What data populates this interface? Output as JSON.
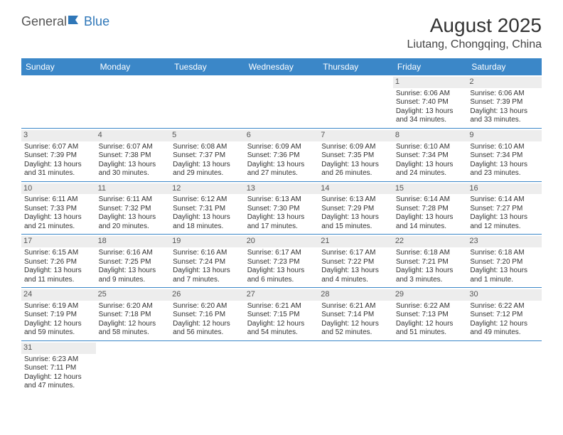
{
  "logo": {
    "part1": "General",
    "part2": "Blue"
  },
  "title": "August 2025",
  "location": "Liutang, Chongqing, China",
  "colors": {
    "header_bg": "#3b87c8",
    "header_text": "#ffffff",
    "daynum_bg": "#ededed",
    "border": "#3b87c8"
  },
  "weekdays": [
    "Sunday",
    "Monday",
    "Tuesday",
    "Wednesday",
    "Thursday",
    "Friday",
    "Saturday"
  ],
  "weeks": [
    [
      null,
      null,
      null,
      null,
      null,
      {
        "n": "1",
        "sr": "Sunrise: 6:06 AM",
        "ss": "Sunset: 7:40 PM",
        "dl": "Daylight: 13 hours and 34 minutes."
      },
      {
        "n": "2",
        "sr": "Sunrise: 6:06 AM",
        "ss": "Sunset: 7:39 PM",
        "dl": "Daylight: 13 hours and 33 minutes."
      }
    ],
    [
      {
        "n": "3",
        "sr": "Sunrise: 6:07 AM",
        "ss": "Sunset: 7:39 PM",
        "dl": "Daylight: 13 hours and 31 minutes."
      },
      {
        "n": "4",
        "sr": "Sunrise: 6:07 AM",
        "ss": "Sunset: 7:38 PM",
        "dl": "Daylight: 13 hours and 30 minutes."
      },
      {
        "n": "5",
        "sr": "Sunrise: 6:08 AM",
        "ss": "Sunset: 7:37 PM",
        "dl": "Daylight: 13 hours and 29 minutes."
      },
      {
        "n": "6",
        "sr": "Sunrise: 6:09 AM",
        "ss": "Sunset: 7:36 PM",
        "dl": "Daylight: 13 hours and 27 minutes."
      },
      {
        "n": "7",
        "sr": "Sunrise: 6:09 AM",
        "ss": "Sunset: 7:35 PM",
        "dl": "Daylight: 13 hours and 26 minutes."
      },
      {
        "n": "8",
        "sr": "Sunrise: 6:10 AM",
        "ss": "Sunset: 7:34 PM",
        "dl": "Daylight: 13 hours and 24 minutes."
      },
      {
        "n": "9",
        "sr": "Sunrise: 6:10 AM",
        "ss": "Sunset: 7:34 PM",
        "dl": "Daylight: 13 hours and 23 minutes."
      }
    ],
    [
      {
        "n": "10",
        "sr": "Sunrise: 6:11 AM",
        "ss": "Sunset: 7:33 PM",
        "dl": "Daylight: 13 hours and 21 minutes."
      },
      {
        "n": "11",
        "sr": "Sunrise: 6:11 AM",
        "ss": "Sunset: 7:32 PM",
        "dl": "Daylight: 13 hours and 20 minutes."
      },
      {
        "n": "12",
        "sr": "Sunrise: 6:12 AM",
        "ss": "Sunset: 7:31 PM",
        "dl": "Daylight: 13 hours and 18 minutes."
      },
      {
        "n": "13",
        "sr": "Sunrise: 6:13 AM",
        "ss": "Sunset: 7:30 PM",
        "dl": "Daylight: 13 hours and 17 minutes."
      },
      {
        "n": "14",
        "sr": "Sunrise: 6:13 AM",
        "ss": "Sunset: 7:29 PM",
        "dl": "Daylight: 13 hours and 15 minutes."
      },
      {
        "n": "15",
        "sr": "Sunrise: 6:14 AM",
        "ss": "Sunset: 7:28 PM",
        "dl": "Daylight: 13 hours and 14 minutes."
      },
      {
        "n": "16",
        "sr": "Sunrise: 6:14 AM",
        "ss": "Sunset: 7:27 PM",
        "dl": "Daylight: 13 hours and 12 minutes."
      }
    ],
    [
      {
        "n": "17",
        "sr": "Sunrise: 6:15 AM",
        "ss": "Sunset: 7:26 PM",
        "dl": "Daylight: 13 hours and 11 minutes."
      },
      {
        "n": "18",
        "sr": "Sunrise: 6:16 AM",
        "ss": "Sunset: 7:25 PM",
        "dl": "Daylight: 13 hours and 9 minutes."
      },
      {
        "n": "19",
        "sr": "Sunrise: 6:16 AM",
        "ss": "Sunset: 7:24 PM",
        "dl": "Daylight: 13 hours and 7 minutes."
      },
      {
        "n": "20",
        "sr": "Sunrise: 6:17 AM",
        "ss": "Sunset: 7:23 PM",
        "dl": "Daylight: 13 hours and 6 minutes."
      },
      {
        "n": "21",
        "sr": "Sunrise: 6:17 AM",
        "ss": "Sunset: 7:22 PM",
        "dl": "Daylight: 13 hours and 4 minutes."
      },
      {
        "n": "22",
        "sr": "Sunrise: 6:18 AM",
        "ss": "Sunset: 7:21 PM",
        "dl": "Daylight: 13 hours and 3 minutes."
      },
      {
        "n": "23",
        "sr": "Sunrise: 6:18 AM",
        "ss": "Sunset: 7:20 PM",
        "dl": "Daylight: 13 hours and 1 minute."
      }
    ],
    [
      {
        "n": "24",
        "sr": "Sunrise: 6:19 AM",
        "ss": "Sunset: 7:19 PM",
        "dl": "Daylight: 12 hours and 59 minutes."
      },
      {
        "n": "25",
        "sr": "Sunrise: 6:20 AM",
        "ss": "Sunset: 7:18 PM",
        "dl": "Daylight: 12 hours and 58 minutes."
      },
      {
        "n": "26",
        "sr": "Sunrise: 6:20 AM",
        "ss": "Sunset: 7:16 PM",
        "dl": "Daylight: 12 hours and 56 minutes."
      },
      {
        "n": "27",
        "sr": "Sunrise: 6:21 AM",
        "ss": "Sunset: 7:15 PM",
        "dl": "Daylight: 12 hours and 54 minutes."
      },
      {
        "n": "28",
        "sr": "Sunrise: 6:21 AM",
        "ss": "Sunset: 7:14 PM",
        "dl": "Daylight: 12 hours and 52 minutes."
      },
      {
        "n": "29",
        "sr": "Sunrise: 6:22 AM",
        "ss": "Sunset: 7:13 PM",
        "dl": "Daylight: 12 hours and 51 minutes."
      },
      {
        "n": "30",
        "sr": "Sunrise: 6:22 AM",
        "ss": "Sunset: 7:12 PM",
        "dl": "Daylight: 12 hours and 49 minutes."
      }
    ],
    [
      {
        "n": "31",
        "sr": "Sunrise: 6:23 AM",
        "ss": "Sunset: 7:11 PM",
        "dl": "Daylight: 12 hours and 47 minutes."
      },
      null,
      null,
      null,
      null,
      null,
      null
    ]
  ]
}
